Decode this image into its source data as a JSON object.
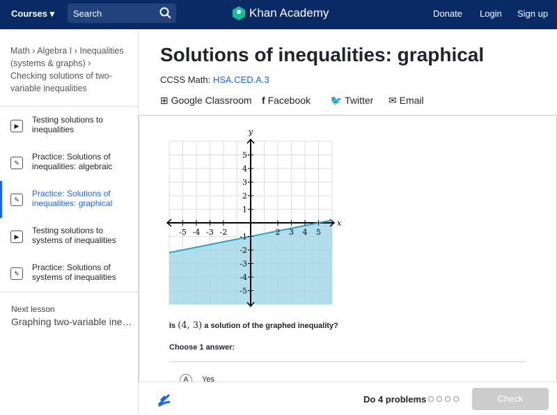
{
  "header": {
    "courses": "Courses",
    "search": "Search",
    "logo": "Khan Academy",
    "nav": [
      "Donate",
      "Login",
      "Sign up"
    ]
  },
  "breadcrumb": [
    "Math",
    "Algebra I",
    "Inequalities (systems & graphs)",
    "Checking solutions of two-variable inequalities"
  ],
  "sidebar": {
    "items": [
      "Testing solutions to inequalities",
      "Practice: Solutions of inequalities: algebraic",
      "Practice: Solutions of inequalities: graphical",
      "Testing solutions to systems of inequalities",
      "Practice: Solutions of systems of inequalities"
    ],
    "next_label": "Next lesson",
    "next_title": "Graphing two-variable ine…"
  },
  "title": "Solutions of inequalities: graphical",
  "standard": {
    "prefix": "CCSS Math:",
    "code": "HSA.CED.A.3"
  },
  "share": [
    "Google Classroom",
    "Facebook",
    "Twitter",
    "Email"
  ],
  "graph": {
    "x_label": "x",
    "y_label": "y",
    "xlim": [
      -6,
      6
    ],
    "ylim": [
      -6,
      6
    ],
    "xticks": [
      -5,
      -4,
      -3,
      -2,
      2,
      3,
      4,
      5
    ],
    "yticks": [
      5,
      4,
      3,
      2,
      1,
      -1,
      -2,
      -3,
      -4,
      -5
    ],
    "boundary": {
      "x": [
        -6,
        6
      ],
      "y": [
        -2.2,
        0.2
      ]
    }
  },
  "question": {
    "prefix": "Is",
    "point": "(4, 3)",
    "suffix": "a solution of the graphed inequality?"
  },
  "choose": "Choose 1 answer:",
  "choices": [
    {
      "letter": "A",
      "text": "Yes"
    }
  ],
  "footer": {
    "problems": "Do 4 problems",
    "button": "Check"
  }
}
